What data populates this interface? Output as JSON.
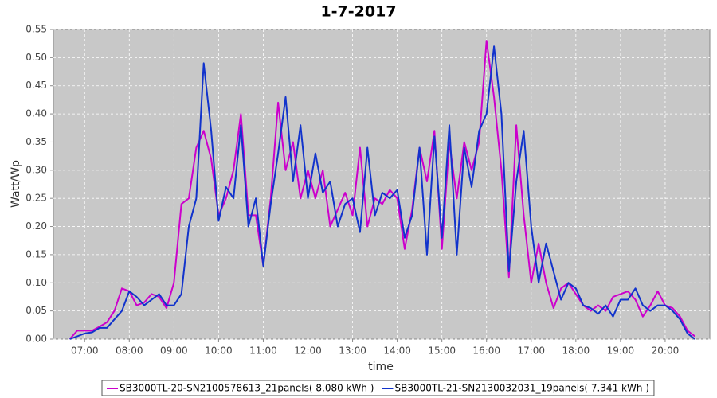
{
  "chart_data": {
    "type": "line",
    "title": "1-7-2017",
    "xlabel": "time",
    "ylabel": "Watt/Wp",
    "x": [
      400,
      410,
      420,
      430,
      440,
      450,
      460,
      470,
      480,
      490,
      500,
      510,
      520,
      530,
      540,
      550,
      560,
      570,
      580,
      590,
      600,
      610,
      620,
      630,
      640,
      650,
      660,
      670,
      680,
      690,
      700,
      710,
      720,
      730,
      740,
      750,
      760,
      770,
      780,
      790,
      800,
      810,
      820,
      830,
      840,
      850,
      860,
      870,
      880,
      890,
      900,
      910,
      920,
      930,
      940,
      950,
      960,
      970,
      980,
      990,
      1000,
      1010,
      1020,
      1030,
      1040,
      1050,
      1060,
      1070,
      1080,
      1090,
      1100,
      1110,
      1120,
      1130,
      1140,
      1150,
      1160,
      1170,
      1180,
      1190,
      1200,
      1210,
      1220,
      1230,
      1240
    ],
    "series": [
      {
        "name": "SB3000TL-20-SN2100578613_21panels( 8.080 kWh )",
        "color": "#cc00cc",
        "values": [
          0.0,
          0.015,
          0.015,
          0.015,
          0.022,
          0.03,
          0.05,
          0.09,
          0.085,
          0.06,
          0.065,
          0.08,
          0.075,
          0.055,
          0.1,
          0.24,
          0.25,
          0.34,
          0.37,
          0.32,
          0.22,
          0.25,
          0.3,
          0.4,
          0.22,
          0.22,
          0.13,
          0.25,
          0.42,
          0.3,
          0.35,
          0.25,
          0.3,
          0.25,
          0.3,
          0.2,
          0.23,
          0.26,
          0.22,
          0.34,
          0.2,
          0.25,
          0.24,
          0.265,
          0.25,
          0.16,
          0.23,
          0.34,
          0.28,
          0.37,
          0.16,
          0.35,
          0.25,
          0.35,
          0.3,
          0.35,
          0.53,
          0.43,
          0.3,
          0.11,
          0.38,
          0.22,
          0.1,
          0.17,
          0.1,
          0.055,
          0.09,
          0.1,
          0.08,
          0.06,
          0.05,
          0.06,
          0.05,
          0.075,
          0.08,
          0.085,
          0.07,
          0.04,
          0.06,
          0.085,
          0.06,
          0.055,
          0.04,
          0.015,
          0.005
        ]
      },
      {
        "name": "SB3000TL-21-SN2130032031_19panels( 7.341 kWh )",
        "color": "#1133cc",
        "values": [
          0.0,
          0.005,
          0.01,
          0.012,
          0.02,
          0.02,
          0.035,
          0.05,
          0.085,
          0.075,
          0.06,
          0.07,
          0.08,
          0.06,
          0.06,
          0.08,
          0.2,
          0.25,
          0.49,
          0.37,
          0.21,
          0.27,
          0.25,
          0.38,
          0.2,
          0.25,
          0.13,
          0.24,
          0.33,
          0.43,
          0.28,
          0.38,
          0.25,
          0.33,
          0.26,
          0.28,
          0.2,
          0.24,
          0.25,
          0.19,
          0.34,
          0.22,
          0.26,
          0.25,
          0.265,
          0.18,
          0.22,
          0.34,
          0.15,
          0.36,
          0.18,
          0.38,
          0.15,
          0.34,
          0.27,
          0.37,
          0.4,
          0.52,
          0.4,
          0.12,
          0.28,
          0.37,
          0.2,
          0.1,
          0.17,
          0.12,
          0.07,
          0.1,
          0.09,
          0.06,
          0.055,
          0.045,
          0.06,
          0.04,
          0.07,
          0.07,
          0.09,
          0.06,
          0.05,
          0.06,
          0.06,
          0.05,
          0.035,
          0.01,
          0.0
        ]
      }
    ],
    "xlim": [
      378,
      1260
    ],
    "ylim": [
      0,
      0.55
    ],
    "xticks": [
      {
        "value": 420,
        "label": "07:00"
      },
      {
        "value": 480,
        "label": "08:00"
      },
      {
        "value": 540,
        "label": "09:00"
      },
      {
        "value": 600,
        "label": "10:00"
      },
      {
        "value": 660,
        "label": "11:00"
      },
      {
        "value": 720,
        "label": "12:00"
      },
      {
        "value": 780,
        "label": "13:00"
      },
      {
        "value": 840,
        "label": "14:00"
      },
      {
        "value": 900,
        "label": "15:00"
      },
      {
        "value": 960,
        "label": "16:00"
      },
      {
        "value": 1020,
        "label": "17:00"
      },
      {
        "value": 1080,
        "label": "18:00"
      },
      {
        "value": 1140,
        "label": "19:00"
      },
      {
        "value": 1200,
        "label": "20:00"
      }
    ],
    "yticks": [
      {
        "value": 0,
        "label": "0.00"
      },
      0.05,
      {
        "value": 0.1,
        "label": "0.10"
      },
      0.15,
      {
        "value": 0.2,
        "label": "0.20"
      },
      0.25,
      {
        "value": 0.3,
        "label": "0.30"
      },
      0.35,
      {
        "value": 0.4,
        "label": "0.40"
      },
      0.45,
      {
        "value": 0.5,
        "label": "0.50"
      },
      0.55
    ],
    "grid": true
  }
}
